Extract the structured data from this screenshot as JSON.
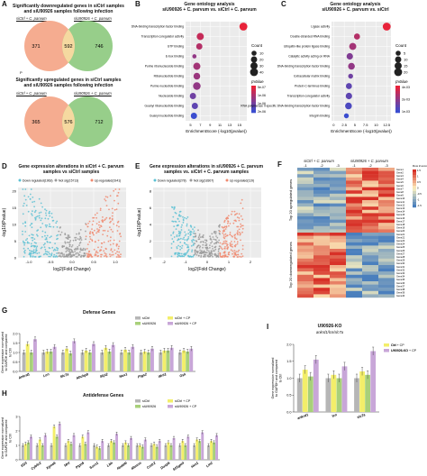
{
  "panelA": {
    "label": "A",
    "venn1": {
      "title": "Significantly downregulated genes in siCtrl samples\nand siU90926 samples following infection",
      "left_label": "siCtrl + C. parvum",
      "right_label": "siU90926 + C. parvum",
      "left_only": "371",
      "overlap": "592",
      "right_only": "746",
      "footnote": "P"
    },
    "venn2": {
      "title": "Significantly upregulated genes in siCtrl samples\nand siU90926 samples following infection",
      "left_label": "siCtrl + C. parvum",
      "right_label": "siU90926 + C. parvum",
      "left_only": "365",
      "overlap": "576",
      "right_only": "712"
    }
  },
  "panelB": {
    "label": "B",
    "title": "Gene ontology analysis\nsiU90926 + C. parvum vs. siCtrl + C. parvum",
    "xlabel": "EnrichmentScore (-log10(pvalue))",
    "terms": [
      "DNA-binding transcription factor binding",
      "Transcription coregulator activity",
      "GTP binding",
      "E-box binding",
      "Purine ribonucleoside binding",
      "Ribonucleotide binding",
      "Purine nucleotide binding",
      "Nucleoside binding",
      "Guanyl ribonucleotide binding",
      "Guanyl nucleotide binding"
    ],
    "scores": [
      15.8,
      7.0,
      6.8,
      5.8,
      6.3,
      6.3,
      6.3,
      5.5,
      5.9,
      5.7
    ],
    "counts": [
      40,
      30,
      20,
      5,
      30,
      25,
      35,
      20,
      20,
      20
    ],
    "pvals_rank": [
      0,
      0.2,
      0.3,
      0.5,
      0.4,
      0.45,
      0.5,
      0.7,
      0.8,
      1
    ],
    "ticks": [
      "5",
      "7",
      "9",
      "11",
      "13",
      "15"
    ],
    "legend_count": "Count",
    "legend_counts": [
      "10",
      "20",
      "30",
      "40"
    ],
    "legend_p": "pValue",
    "legend_p_vals": [
      "5e-07",
      "1e-06",
      "1e-06",
      "2e-06"
    ]
  },
  "panelC": {
    "label": "C",
    "title": "Gene ontology analysis\nsiU90926 + C. parvum vs. siCtrl",
    "xlabel": "EnrichmentScore (-log10(pvalue))",
    "terms": [
      "Ligase activity",
      "Double-stranded RNA binding",
      "Ubiquitin-like protein ligase binding",
      "Catalytic activity acting on RNA",
      "DNA-binding transcription factor binding",
      "Extracellular matrix binding",
      "Protein C-terminus binding",
      "Transcription coregulator activity",
      "RNA polymerase II-specific DNA-binding transcription factor binding",
      "Integrin binding"
    ],
    "scores": [
      12.5,
      5.5,
      4.5,
      3.8,
      4.2,
      4.0,
      3.6,
      3.6,
      3.5,
      3.0
    ],
    "counts": [
      22,
      10,
      16,
      12,
      14,
      5,
      10,
      12,
      14,
      5
    ],
    "pvals_rank": [
      0,
      0.3,
      0.4,
      0.6,
      0.5,
      0.7,
      0.8,
      0.8,
      0.9,
      1
    ],
    "ticks": [
      "0",
      "2.5",
      "5",
      "7.5",
      "10",
      "12.5"
    ],
    "legend_count": "Count",
    "legend_counts": [
      "5",
      "10",
      "15",
      "20"
    ],
    "legend_p": "pValue",
    "legend_p_vals": [
      "4e-03",
      "2e-03",
      "1e-03"
    ]
  },
  "panelD": {
    "label": "D",
    "title": "Gene expression alterations in siCtrl + C. parvum\nsamples vs siCtrl samples",
    "legend": [
      "Down regulated(1963)",
      "Not sig(15713)",
      "Up regulated(1941)"
    ],
    "xlabel": "log2(Fold Change)",
    "ylabel": "-log10(Pvalue)",
    "xticks": [
      "-1.0",
      "-0.5",
      "0.0",
      "0.5",
      "1.0"
    ],
    "yticks": [
      "0",
      "5",
      "10",
      "15",
      "20"
    ]
  },
  "panelE": {
    "label": "E",
    "title": "Gene expression alterations in siU90926 + C. parvum\nsamples vs. siCtrl + C. parvum samples",
    "legend": [
      "Down regulated(278)",
      "Not sig(18307)",
      "Up regulated(119)"
    ],
    "xlabel": "log2(Fold Change)",
    "ylabel": "-log10(Pvalue)",
    "xticks": [
      "-2",
      "-1",
      "0",
      "1",
      "2"
    ],
    "yticks": [
      "0",
      "2",
      "4",
      "6",
      "8"
    ]
  },
  "panelF": {
    "label": "F",
    "header_left": "siCtrl + C. parvum",
    "header_right": "siU90926 + C. parvum",
    "cols": [
      "-1",
      "-2",
      "-3",
      "-1",
      "-2",
      "-3"
    ],
    "side_top": "Top 20 upregulated genes",
    "side_bottom": "Top 20 downregulated genes",
    "legend_title": "Row Z-score",
    "legend_vals": [
      "1.5",
      "1",
      "0.5",
      "0",
      "-0.5",
      "-1",
      "-1.5"
    ]
  },
  "panelG": {
    "label": "G",
    "title": "Defense Genes",
    "ylabel": "Gene expression normalized\nto GAPDH and compared\nto Ctrl",
    "legend": [
      "siCtrl",
      "siCtrl + CP",
      "siU90926",
      "siU90926 + CP"
    ],
    "genes": [
      "Ankrd1",
      "Lcn",
      "Slc7a",
      "Abcbpb",
      "Slpi2",
      "Nox1",
      "Ptgs2",
      "Wnt1",
      "Gsk"
    ],
    "series": [
      {
        "name": "siCtrl",
        "values": [
          1,
          1,
          1,
          1,
          1,
          1,
          1,
          1,
          1
        ]
      },
      {
        "name": "siCtrl + CP",
        "values": [
          1.45,
          1.05,
          1.2,
          1.1,
          1.25,
          1.15,
          1.05,
          1.1,
          1.1
        ]
      },
      {
        "name": "siU90926",
        "values": [
          1,
          1.05,
          0.95,
          1,
          1.05,
          1,
          1,
          1.1,
          1.05
        ]
      },
      {
        "name": "siU90926 + CP",
        "values": [
          1.7,
          1.3,
          1.6,
          1.45,
          1.4,
          1.3,
          1.2,
          1.25,
          1.2
        ]
      }
    ],
    "yticks": [
      "0.0",
      "0.5",
      "1.0",
      "1.5",
      "2.0"
    ],
    "ymax": 2.0
  },
  "panelH": {
    "label": "H",
    "title": "Antidefense Genes",
    "ylabel": "Gene expression normalized\nto GAPDH and compared\nto Ctrl",
    "legend": [
      "siCtrl",
      "siCtrl + CP",
      "siU90926",
      "siU90926 + CP"
    ],
    "genes": [
      "Il1l3",
      "Cyb5r2",
      "Kpna6",
      "Mnt",
      "Ptpn6",
      "Socs1",
      "Lbh",
      "Nedd4l",
      "Mtmrm",
      "Cmtr2",
      "Dusp6",
      "Stl1gw4",
      "Hes1",
      "Lin2"
    ],
    "series": [
      {
        "name": "siCtrl",
        "values": [
          1,
          1,
          1,
          1,
          1,
          1,
          1,
          1,
          1,
          1,
          1,
          1,
          1,
          1
        ]
      },
      {
        "name": "siCtrl + CP",
        "values": [
          1.1,
          1.4,
          2.3,
          1.3,
          1.6,
          0.9,
          1.3,
          1.2,
          1.0,
          1.1,
          1.2,
          1.3,
          1.4,
          1.3
        ]
      },
      {
        "name": "siU90926",
        "values": [
          1.2,
          1.0,
          1.6,
          1.1,
          1.1,
          0.8,
          1.2,
          1.0,
          0.9,
          0.9,
          1.0,
          1.0,
          1.3,
          1.2
        ]
      },
      {
        "name": "siU90926 + CP",
        "values": [
          1.6,
          1.7,
          2.5,
          1.7,
          1.9,
          1.3,
          1.8,
          1.5,
          1.4,
          1.3,
          1.5,
          1.6,
          1.9,
          1.7
        ]
      }
    ],
    "yticks": [
      "0",
      "1",
      "2",
      "3"
    ],
    "ymax": 3.0
  },
  "panelI": {
    "label": "I",
    "title": "U90926-KO",
    "subtitle": "ankrd1/lcn/slc7a",
    "ylabel": "Gene expression normalized\nto GAPDH and compared\nto Ctrl",
    "legend": [
      "Ctrl",
      "Ctrl + CP",
      "U90926-KO",
      "U90926-KO + CP"
    ],
    "genes": [
      "ankrd1",
      "lcn",
      "slc7a"
    ],
    "series": [
      {
        "name": "Ctrl",
        "values": [
          1,
          1,
          1
        ]
      },
      {
        "name": "Ctrl + CP",
        "values": [
          1.25,
          1.1,
          1.2
        ]
      },
      {
        "name": "U90926-KO",
        "values": [
          1.05,
          1.0,
          1.1
        ]
      },
      {
        "name": "U90926-KO + CP",
        "values": [
          1.55,
          1.35,
          1.8
        ]
      }
    ],
    "yticks": [
      "0.0",
      "0.5",
      "1.0",
      "1.5",
      "2.0"
    ],
    "ymax": 2.0
  },
  "colors": {
    "venn_left": "#f4a384",
    "venn_right": "#8cc97d",
    "venn_overlap": "#f5d9a0",
    "bar1": "#b6b6b6",
    "bar2": "#f3ee6a",
    "bar3": "#a8d07a",
    "bar4": "#c8a6d8",
    "volcano_down": "#5dc1d4",
    "volcano_ns": "#9a9a9a",
    "volcano_up": "#f08a70"
  }
}
